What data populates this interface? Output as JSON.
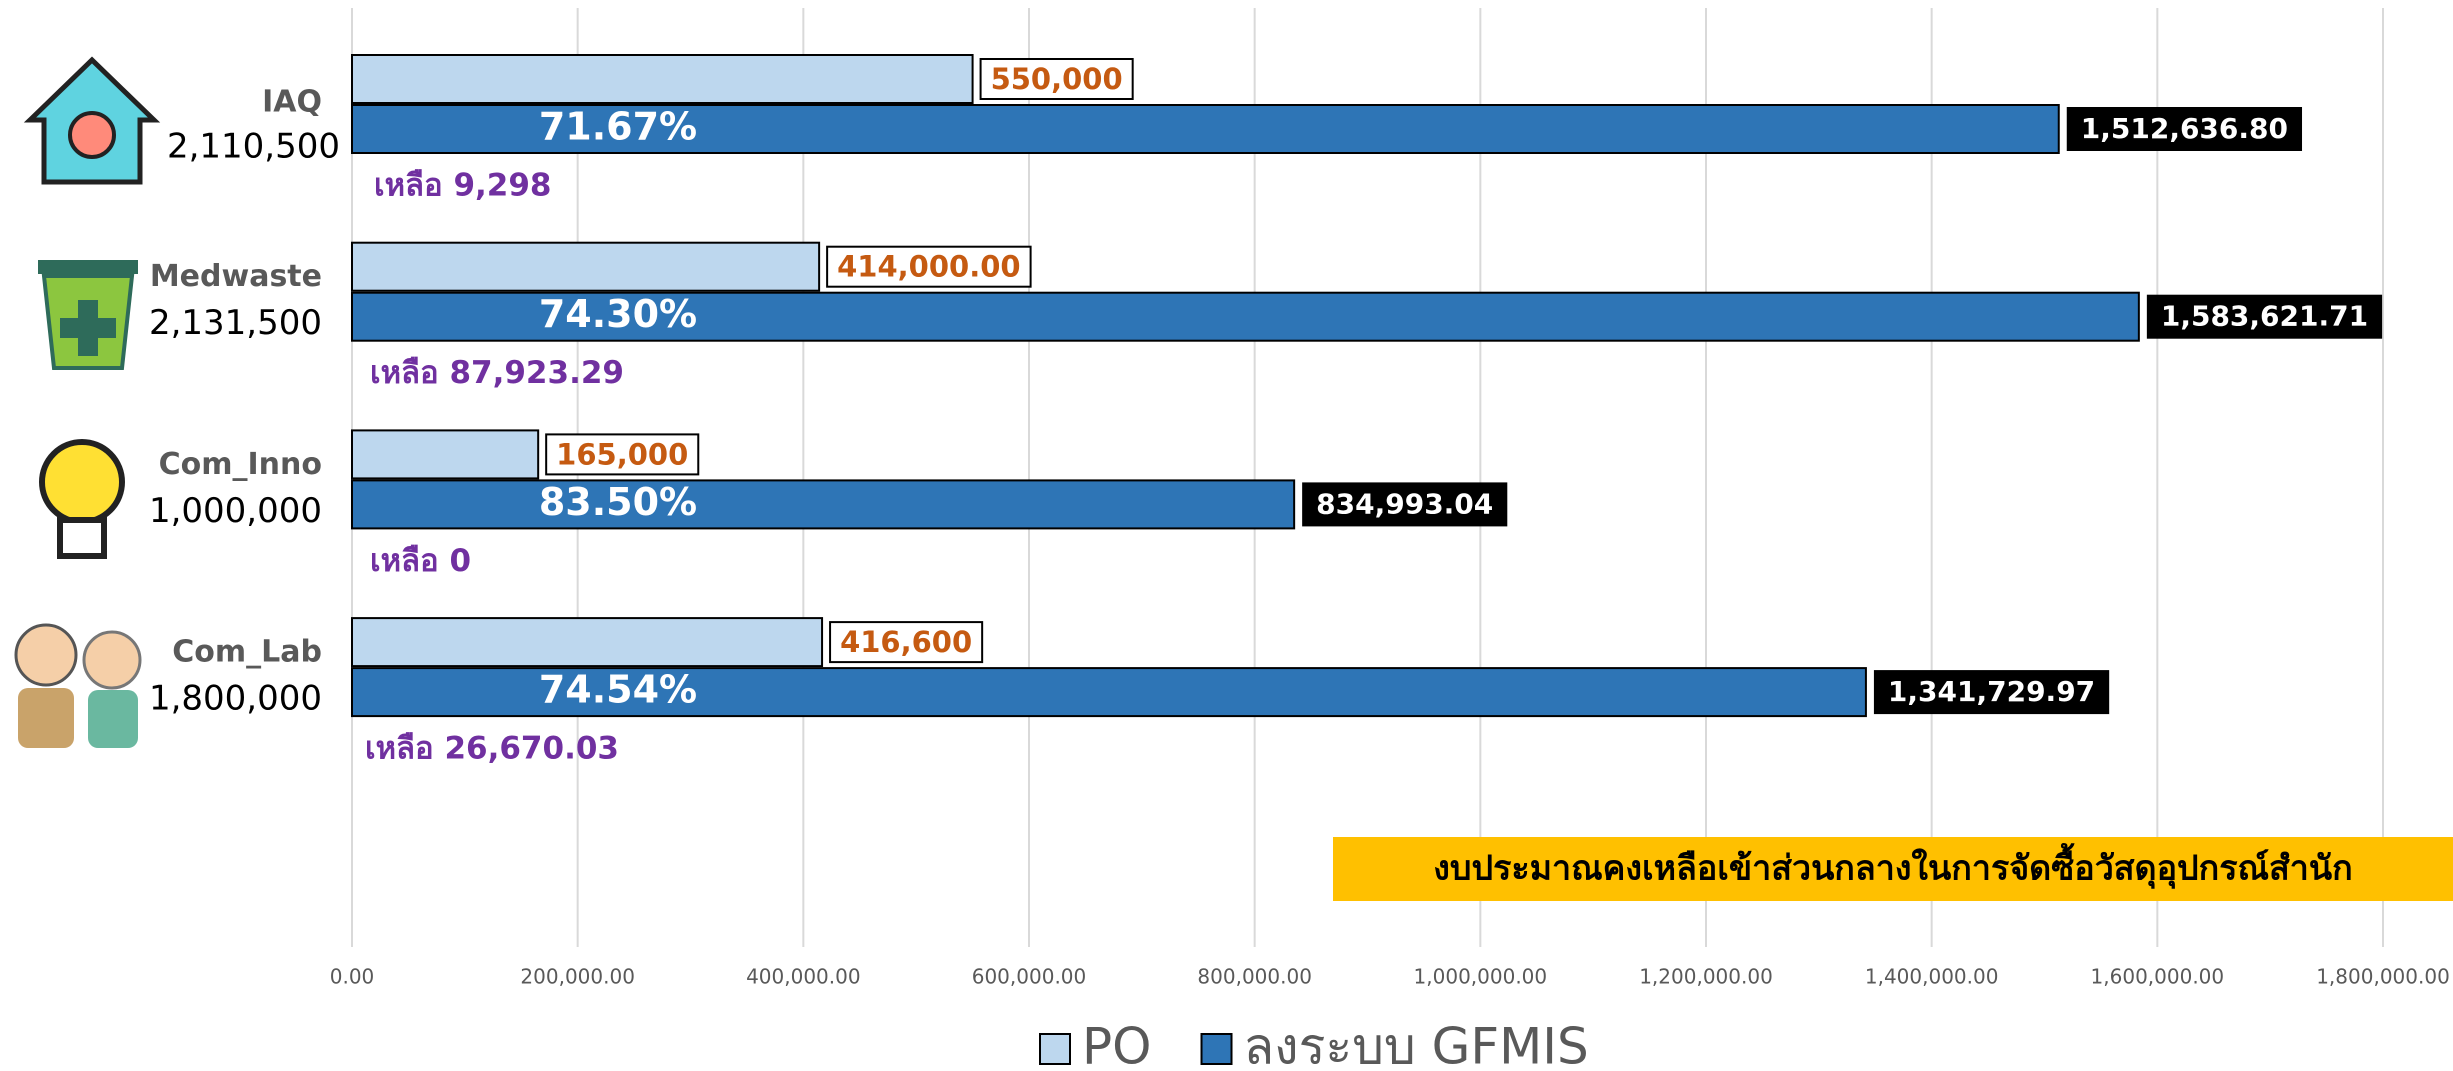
{
  "chart_data": {
    "type": "bar",
    "orientation": "horizontal",
    "categories": [
      "IAQ",
      "Medwaste",
      "Com_Inno",
      "Com_Lab"
    ],
    "budget_labels": [
      "2,110,500",
      "2,131,500",
      "1,000,000",
      "1,800,000"
    ],
    "series": [
      {
        "name": "PO",
        "color": "#bdd7ee",
        "values": [
          550000,
          414000,
          165000,
          416600
        ],
        "value_labels": [
          "550,000",
          "414,000.00",
          "165,000",
          "416,600"
        ]
      },
      {
        "name": "ลงระบบ GFMIS",
        "color": "#2e75b6",
        "values": [
          1512636.8,
          1583621.71,
          834993.04,
          1341729.97
        ],
        "value_labels": [
          "1,512,636.80",
          "1,583,621.71",
          "834,993.04",
          "1,341,729.97"
        ]
      }
    ],
    "percent_labels": [
      "71.67%",
      "74.30%",
      "83.50%",
      "74.54%"
    ],
    "remaining_labels": [
      "เหลือ 9,298",
      "เหลือ 87,923.29",
      "เหลือ 0",
      "เหลือ 26,670.03"
    ],
    "annotation": "งบประมาณคงเหลือเข้าส่วนกลางในการจัดซื้อวัสดุอุปกรณ์สำนัก",
    "xlim": [
      0,
      1800000
    ],
    "xticks": [
      {
        "value": 0,
        "label": "0.00"
      },
      {
        "value": 200000,
        "label": "200,000.00"
      },
      {
        "value": 400000,
        "label": "400,000.00"
      },
      {
        "value": 600000,
        "label": "600,000.00"
      },
      {
        "value": 800000,
        "label": "800,000.00"
      },
      {
        "value": 1000000,
        "label": "1,000,000.00"
      },
      {
        "value": 1200000,
        "label": "1,200,000.00"
      },
      {
        "value": 1400000,
        "label": "1,400,000.00"
      },
      {
        "value": 1600000,
        "label": "1,600,000.00"
      },
      {
        "value": 1800000,
        "label": "1,800,000.00"
      }
    ],
    "grid": true,
    "legend": "bottom"
  }
}
